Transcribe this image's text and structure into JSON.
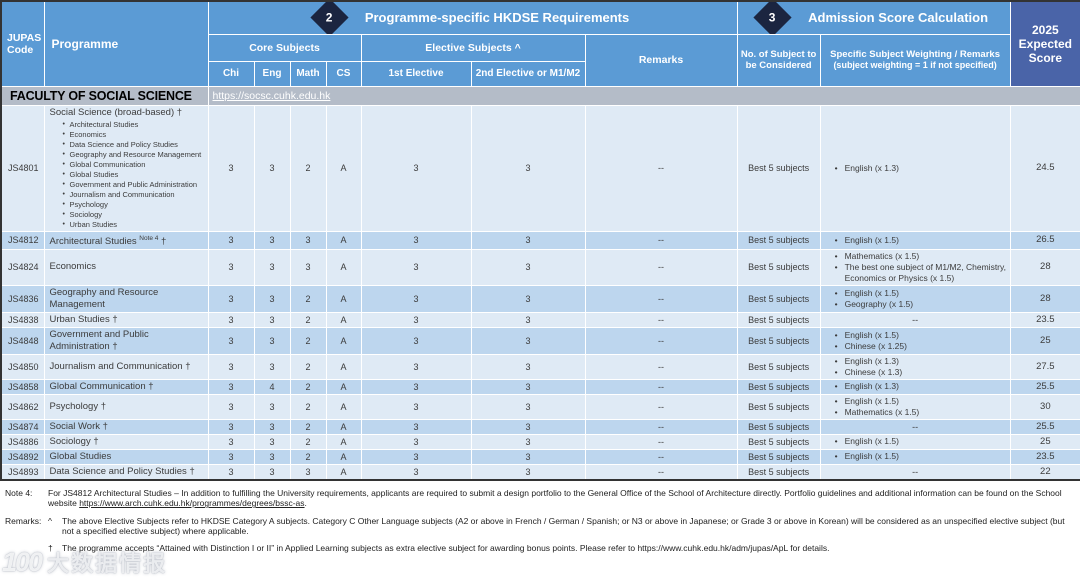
{
  "header": {
    "jupas_code": "JUPAS Code",
    "programme": "Programme",
    "sec2": {
      "badge": "2",
      "title": "Programme-specific HKDSE Requirements"
    },
    "sec3": {
      "badge": "3",
      "title": "Admission Score Calculation"
    },
    "expected_score": "2025 Expected Score",
    "core_subjects": "Core Subjects",
    "elective_subjects": "Elective Subjects ^",
    "remarks": "Remarks",
    "consider": "No. of Subject to be Considered",
    "weighting_line1": "Specific Subject Weighting / Remarks",
    "weighting_line2": "(subject weighting = 1 if not specified)",
    "chi": "Chi",
    "eng": "Eng",
    "math": "Math",
    "cs": "CS",
    "elective1": "1st Elective",
    "elective2": "2nd Elective or M1/M2"
  },
  "faculty": {
    "name": "FACULTY OF SOCIAL SCIENCE",
    "url": "https://socsc.cuhk.edu.hk"
  },
  "table": {
    "rows": [
      {
        "code": "JS4801",
        "name": "Social Science (broad-based)",
        "dagger": true,
        "subs": [
          "Architectural Studies",
          "Economics",
          "Data Science and Policy Studies",
          "Geography and Resource Management",
          "Global Communication",
          "Global Studies",
          "Government and Public Administration",
          "Journalism and Communication",
          "Psychology",
          "Sociology",
          "Urban Studies"
        ],
        "chi": "3",
        "eng": "3",
        "math": "2",
        "cs": "A",
        "e1": "3",
        "e2": "3",
        "remarks": "--",
        "consider": "Best 5 subjects",
        "weighting": [
          "English (x 1.3)"
        ],
        "score": "24.5",
        "shade": "light"
      },
      {
        "code": "JS4812",
        "name": "Architectural Studies",
        "sup": "Note 4",
        "dagger": true,
        "chi": "3",
        "eng": "3",
        "math": "3",
        "cs": "A",
        "e1": "3",
        "e2": "3",
        "remarks": "--",
        "consider": "Best 5 subjects",
        "weighting": [
          "English (x 1.5)"
        ],
        "score": "26.5",
        "shade": "dark"
      },
      {
        "code": "JS4824",
        "name": "Economics",
        "dagger": false,
        "chi": "3",
        "eng": "3",
        "math": "3",
        "cs": "A",
        "e1": "3",
        "e2": "3",
        "remarks": "--",
        "consider": "Best 5 subjects",
        "weighting": [
          "Mathematics (x 1.5)",
          "The best one subject of M1/M2, Chemistry, Economics or Physics (x 1.5)"
        ],
        "score": "28",
        "shade": "light"
      },
      {
        "code": "JS4836",
        "name": "Geography and Resource Management",
        "dagger": false,
        "chi": "3",
        "eng": "3",
        "math": "2",
        "cs": "A",
        "e1": "3",
        "e2": "3",
        "remarks": "--",
        "consider": "Best 5 subjects",
        "weighting": [
          "English (x 1.5)",
          "Geography (x 1.5)"
        ],
        "score": "28",
        "shade": "dark"
      },
      {
        "code": "JS4838",
        "name": "Urban Studies",
        "dagger": true,
        "chi": "3",
        "eng": "3",
        "math": "2",
        "cs": "A",
        "e1": "3",
        "e2": "3",
        "remarks": "--",
        "consider": "Best 5 subjects",
        "weighting": "--",
        "score": "23.5",
        "shade": "light"
      },
      {
        "code": "JS4848",
        "name": "Government and Public Administration",
        "dagger": true,
        "chi": "3",
        "eng": "3",
        "math": "2",
        "cs": "A",
        "e1": "3",
        "e2": "3",
        "remarks": "--",
        "consider": "Best 5 subjects",
        "weighting": [
          "English (x 1.5)",
          "Chinese (x 1.25)"
        ],
        "score": "25",
        "shade": "dark"
      },
      {
        "code": "JS4850",
        "name": "Journalism and Communication",
        "dagger": true,
        "chi": "3",
        "eng": "3",
        "math": "2",
        "cs": "A",
        "e1": "3",
        "e2": "3",
        "remarks": "--",
        "consider": "Best 5 subjects",
        "weighting": [
          "English (x 1.3)",
          "Chinese (x 1.3)"
        ],
        "score": "27.5",
        "shade": "light"
      },
      {
        "code": "JS4858",
        "name": "Global Communication",
        "dagger": true,
        "chi": "3",
        "eng": "4",
        "math": "2",
        "cs": "A",
        "e1": "3",
        "e2": "3",
        "remarks": "--",
        "consider": "Best 5 subjects",
        "weighting": [
          "English (x 1.3)"
        ],
        "score": "25.5",
        "shade": "dark"
      },
      {
        "code": "JS4862",
        "name": "Psychology",
        "dagger": true,
        "chi": "3",
        "eng": "3",
        "math": "2",
        "cs": "A",
        "e1": "3",
        "e2": "3",
        "remarks": "--",
        "consider": "Best 5 subjects",
        "weighting": [
          "English (x 1.5)",
          "Mathematics (x 1.5)"
        ],
        "score": "30",
        "shade": "light"
      },
      {
        "code": "JS4874",
        "name": "Social Work",
        "dagger": true,
        "chi": "3",
        "eng": "3",
        "math": "2",
        "cs": "A",
        "e1": "3",
        "e2": "3",
        "remarks": "--",
        "consider": "Best 5 subjects",
        "weighting": "--",
        "score": "25.5",
        "shade": "dark"
      },
      {
        "code": "JS4886",
        "name": "Sociology",
        "dagger": true,
        "chi": "3",
        "eng": "3",
        "math": "2",
        "cs": "A",
        "e1": "3",
        "e2": "3",
        "remarks": "--",
        "consider": "Best 5 subjects",
        "weighting": [
          "English (x 1.5)"
        ],
        "score": "25",
        "shade": "light"
      },
      {
        "code": "JS4892",
        "name": "Global Studies",
        "dagger": false,
        "chi": "3",
        "eng": "3",
        "math": "2",
        "cs": "A",
        "e1": "3",
        "e2": "3",
        "remarks": "--",
        "consider": "Best 5 subjects",
        "weighting": [
          "English (x 1.5)"
        ],
        "score": "23.5",
        "shade": "dark"
      },
      {
        "code": "JS4893",
        "name": "Data Science and Policy Studies",
        "dagger": true,
        "chi": "3",
        "eng": "3",
        "math": "3",
        "cs": "A",
        "e1": "3",
        "e2": "3",
        "remarks": "--",
        "consider": "Best 5 subjects",
        "weighting": "--",
        "score": "22",
        "shade": "light"
      }
    ]
  },
  "notes": {
    "note4_label": "Note 4:",
    "note4_text": "For JS4812 Architectural Studies – In addition to fulfilling the University requirements, applicants are required to submit a design portfolio to the General Office of the School of Architecture directly. Portfolio guidelines and additional information can be found on the School website ",
    "note4_url": "https://www.arch.cuhk.edu.hk/programmes/degrees/bssc-as",
    "note4_after": ".",
    "remarks_label": "Remarks:",
    "caret_symbol": "^",
    "caret_text": "The above Elective Subjects refer to HKDSE Category A subjects. Category C Other Language subjects (A2 or above in French / German / Spanish; or N3 or above in Japanese; or Grade 3 or above in Korean) will be considered as an unspecified elective subject (but not a specified elective subject) where applicable.",
    "dagger_symbol": "†",
    "dagger_text": "The programme accepts “Attained with Distinction I or II” in Applied Learning subjects as extra elective subject for awarding bonus points. Please refer to https://www.cuhk.edu.hk/adm/jupas/ApL for details."
  },
  "watermark": {
    "logo": "100",
    "text": "大数据情报"
  },
  "colors": {
    "header_blue": "#5b9bd5",
    "score_header_blue": "#4a64a8",
    "diamond_navy": "#1b2540",
    "faculty_gray": "#b4bcc8",
    "row_light": "#dfeaf5",
    "row_dark": "#bdd6ee"
  }
}
